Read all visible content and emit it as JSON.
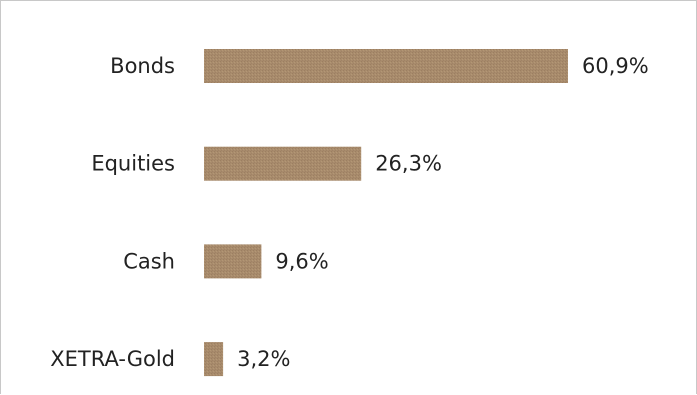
{
  "chart_data": {
    "type": "bar",
    "orientation": "horizontal",
    "categories": [
      "Bonds",
      "Equities",
      "Cash",
      "XETRA-Gold"
    ],
    "values": [
      60.9,
      26.3,
      9.6,
      3.2
    ],
    "value_labels": [
      "60,9%",
      "26,3%",
      "9,6%",
      "3,2%"
    ],
    "unit": "%",
    "title": "",
    "xlabel": "",
    "ylabel": "",
    "xlim": [
      0,
      60.9
    ],
    "grid": false,
    "legend": "none",
    "bar_color": "#a88b6c"
  }
}
